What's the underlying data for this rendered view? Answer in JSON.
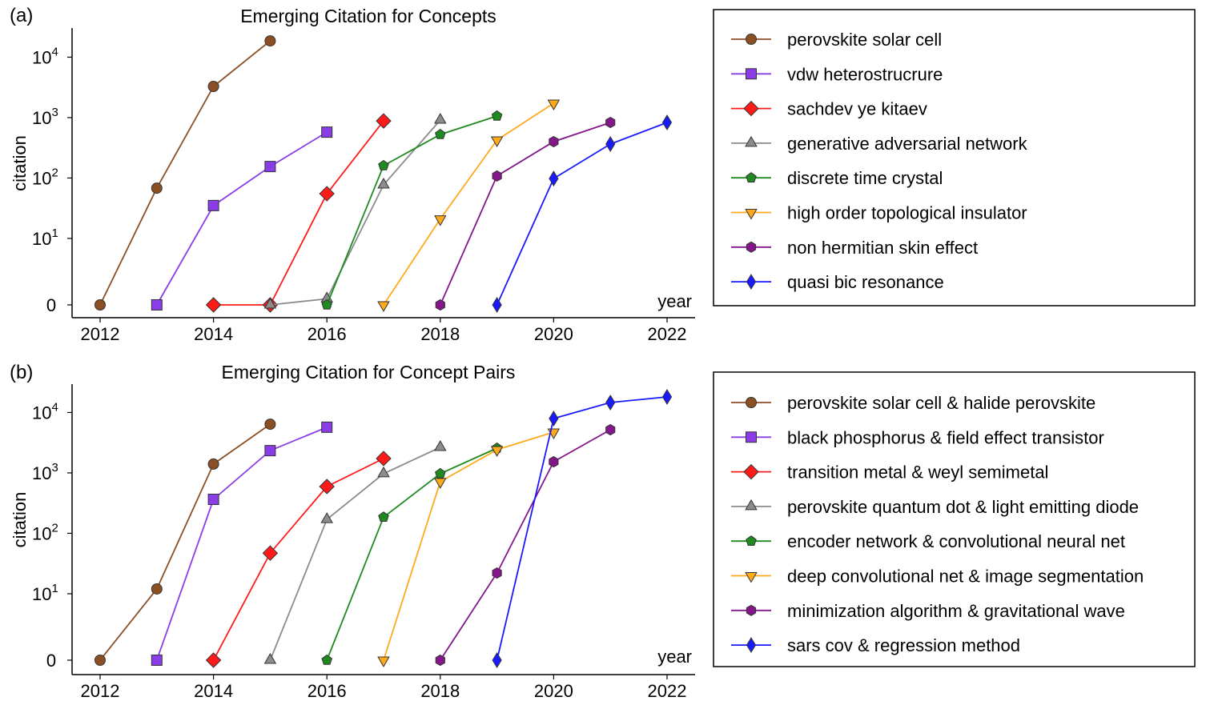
{
  "chart_data": [
    {
      "type": "line",
      "panel_label": "(a)",
      "title": "Emerging Citation for Concepts",
      "xlabel": "year",
      "ylabel": "citation",
      "y_scale": "symlog",
      "xlim": [
        2011.5,
        2022.5
      ],
      "ylim": [
        0,
        30000
      ],
      "x_ticks": [
        "2012",
        "2014",
        "2016",
        "2018",
        "2020",
        "2022"
      ],
      "y_ticks": [
        {
          "value": 0,
          "label": "0"
        },
        {
          "value": 10,
          "label": "10",
          "exp": "1"
        },
        {
          "value": 100,
          "label": "10",
          "exp": "2"
        },
        {
          "value": 1000,
          "label": "10",
          "exp": "3"
        },
        {
          "value": 10000,
          "label": "10",
          "exp": "4"
        }
      ],
      "grid": false,
      "legend_position": "outside-right",
      "series": [
        {
          "name": "perovskite solar cell",
          "color": "#8c4f24",
          "marker": "circle",
          "x": [
            2012,
            2013,
            2014,
            2015
          ],
          "y": [
            0,
            68,
            3280,
            18600
          ]
        },
        {
          "name": "vdw heterostrucrure",
          "color": "#8a3ce6",
          "marker": "square",
          "x": [
            2013,
            2014,
            2015,
            2016
          ],
          "y": [
            0,
            35,
            155,
            575
          ]
        },
        {
          "name": "sachdev ye kitaev",
          "color": "#ff1a1a",
          "marker": "diamond",
          "x": [
            2014,
            2015,
            2016,
            2017
          ],
          "y": [
            0,
            0,
            55,
            880
          ]
        },
        {
          "name": "generative adversarial network",
          "color": "#8c8c8c",
          "marker": "triangle-up",
          "x": [
            2015,
            2016,
            2017,
            2018
          ],
          "y": [
            0,
            1,
            77,
            910
          ]
        },
        {
          "name": "discrete time crystal",
          "color": "#1f8a1f",
          "marker": "pentagon",
          "x": [
            2016,
            2017,
            2018,
            2019
          ],
          "y": [
            0,
            160,
            525,
            1060
          ]
        },
        {
          "name": "high order topological insulator",
          "color": "#ffaa1a",
          "marker": "triangle-down",
          "x": [
            2017,
            2018,
            2019,
            2020
          ],
          "y": [
            0,
            21,
            425,
            1730
          ]
        },
        {
          "name": "non hermitian skin effect",
          "color": "#84168a",
          "marker": "hexagon",
          "x": [
            2018,
            2019,
            2020,
            2021
          ],
          "y": [
            0,
            108,
            400,
            830
          ]
        },
        {
          "name": "quasi bic resonance",
          "color": "#1a1aff",
          "marker": "thin-diamond",
          "x": [
            2019,
            2020,
            2021,
            2022
          ],
          "y": [
            0,
            98,
            365,
            830
          ]
        }
      ]
    },
    {
      "type": "line",
      "panel_label": "(b)",
      "title": "Emerging Citation for Concept Pairs",
      "xlabel": "year",
      "ylabel": "citation",
      "y_scale": "symlog",
      "xlim": [
        2011.5,
        2022.5
      ],
      "ylim": [
        0,
        30000
      ],
      "x_ticks": [
        "2012",
        "2014",
        "2016",
        "2018",
        "2020",
        "2022"
      ],
      "y_ticks": [
        {
          "value": 0,
          "label": "0"
        },
        {
          "value": 10,
          "label": "10",
          "exp": "1"
        },
        {
          "value": 100,
          "label": "10",
          "exp": "2"
        },
        {
          "value": 1000,
          "label": "10",
          "exp": "3"
        },
        {
          "value": 10000,
          "label": "10",
          "exp": "4"
        }
      ],
      "grid": false,
      "legend_position": "outside-right",
      "series": [
        {
          "name": "perovskite solar cell & halide perovskite",
          "color": "#8c4f24",
          "marker": "circle",
          "x": [
            2012,
            2013,
            2014,
            2015
          ],
          "y": [
            0,
            12,
            1400,
            6400
          ]
        },
        {
          "name": "black phosphorus & field effect transistor",
          "color": "#8a3ce6",
          "marker": "square",
          "x": [
            2013,
            2014,
            2015,
            2016
          ],
          "y": [
            0,
            365,
            2340,
            5700
          ]
        },
        {
          "name": "transition metal & weyl semimetal",
          "color": "#ff1a1a",
          "marker": "diamond",
          "x": [
            2014,
            2015,
            2016,
            2017
          ],
          "y": [
            0,
            47,
            595,
            1730
          ]
        },
        {
          "name": "perovskite quantum dot & light emitting diode",
          "color": "#8c8c8c",
          "marker": "triangle-up",
          "x": [
            2015,
            2016,
            2017,
            2018
          ],
          "y": [
            0,
            170,
            970,
            2650
          ]
        },
        {
          "name": "encoder network & convolutional neural net",
          "color": "#1f8a1f",
          "marker": "pentagon",
          "x": [
            2016,
            2017,
            2018,
            2019
          ],
          "y": [
            0,
            185,
            970,
            2570
          ]
        },
        {
          "name": "deep convolutional net & image segmentation",
          "color": "#ffaa1a",
          "marker": "triangle-down",
          "x": [
            2017,
            2018,
            2019,
            2020
          ],
          "y": [
            0,
            715,
            2420,
            4730
          ]
        },
        {
          "name": "minimization algorithm & gravitational wave",
          "color": "#84168a",
          "marker": "hexagon",
          "x": [
            2018,
            2019,
            2020,
            2021
          ],
          "y": [
            0,
            22,
            1530,
            5180
          ]
        },
        {
          "name": "sars cov & regression method",
          "color": "#1a1aff",
          "marker": "thin-diamond",
          "x": [
            2019,
            2020,
            2021,
            2022
          ],
          "y": [
            0,
            7940,
            14600,
            18100
          ]
        }
      ]
    }
  ]
}
